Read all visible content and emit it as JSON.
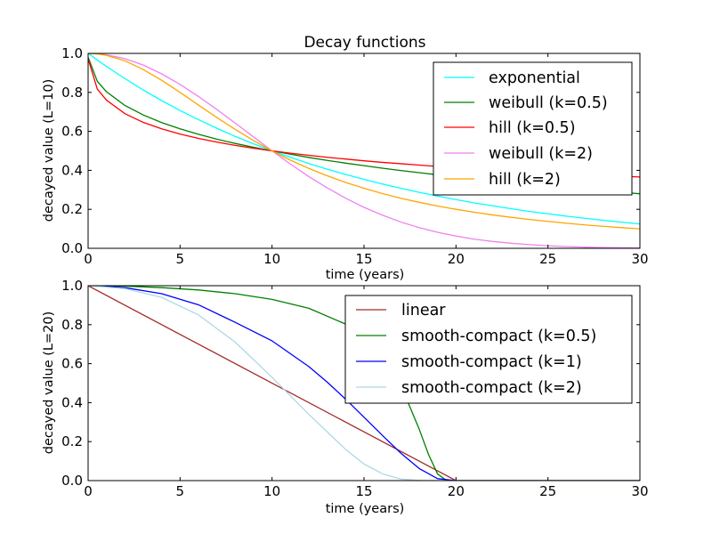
{
  "chart_data": [
    {
      "type": "line",
      "title": "Decay functions",
      "xlabel": "time (years)",
      "ylabel": "decayed value (L=10)",
      "xlim": [
        0,
        30
      ],
      "ylim": [
        0,
        1
      ],
      "xticks": [
        0,
        5,
        10,
        15,
        20,
        25,
        30
      ],
      "yticks": [
        0.0,
        0.2,
        0.4,
        0.6,
        0.8,
        1.0
      ],
      "tick_labels_x": [
        "0",
        "5",
        "10",
        "15",
        "20",
        "25",
        "30"
      ],
      "tick_labels_y": [
        "0.0",
        "0.2",
        "0.4",
        "0.6",
        "0.8",
        "1.0"
      ],
      "grid": false,
      "legend_position": "top-right",
      "x": [
        0.01,
        0.5,
        1,
        2,
        3,
        4,
        5,
        6,
        7,
        8,
        9,
        10,
        11,
        12,
        13,
        14,
        15,
        16,
        17,
        18,
        19,
        20,
        21,
        22,
        23,
        24,
        25,
        26,
        27,
        28,
        29,
        30
      ],
      "series": [
        {
          "name": "exponential",
          "color": "#00ffff",
          "values": [
            1.0,
            0.966,
            0.933,
            0.871,
            0.812,
            0.758,
            0.707,
            0.66,
            0.616,
            0.574,
            0.536,
            0.5,
            0.467,
            0.435,
            0.406,
            0.379,
            0.354,
            0.33,
            0.308,
            0.287,
            0.268,
            0.25,
            0.233,
            0.218,
            0.203,
            0.189,
            0.177,
            0.165,
            0.154,
            0.144,
            0.134,
            0.125
          ]
        },
        {
          "name": "weibull (k=0.5)",
          "color": "#008000",
          "values": [
            0.978,
            0.857,
            0.803,
            0.733,
            0.684,
            0.645,
            0.613,
            0.585,
            0.56,
            0.538,
            0.518,
            0.5,
            0.483,
            0.466,
            0.451,
            0.437,
            0.424,
            0.411,
            0.399,
            0.388,
            0.377,
            0.366,
            0.356,
            0.346,
            0.337,
            0.328,
            0.319,
            0.311,
            0.303,
            0.295,
            0.287,
            0.28
          ]
        },
        {
          "name": "hill (k=0.5)",
          "color": "#ff0000",
          "values": [
            0.969,
            0.817,
            0.76,
            0.691,
            0.646,
            0.613,
            0.586,
            0.564,
            0.545,
            0.528,
            0.513,
            0.5,
            0.488,
            0.477,
            0.467,
            0.458,
            0.449,
            0.441,
            0.434,
            0.427,
            0.42,
            0.414,
            0.408,
            0.403,
            0.397,
            0.392,
            0.387,
            0.383,
            0.378,
            0.374,
            0.37,
            0.366
          ]
        },
        {
          "name": "weibull (k=2)",
          "color": "#ee82ee",
          "values": [
            1.0,
            0.998,
            0.993,
            0.973,
            0.94,
            0.895,
            0.841,
            0.779,
            0.712,
            0.642,
            0.571,
            0.5,
            0.432,
            0.368,
            0.31,
            0.257,
            0.21,
            0.17,
            0.135,
            0.106,
            0.082,
            0.063,
            0.047,
            0.035,
            0.026,
            0.019,
            0.013,
            0.009,
            0.006,
            0.004,
            0.003,
            0.002
          ]
        },
        {
          "name": "hill (k=2)",
          "color": "#ffa500",
          "values": [
            1.0,
            0.998,
            0.99,
            0.962,
            0.917,
            0.862,
            0.8,
            0.735,
            0.671,
            0.61,
            0.552,
            0.5,
            0.452,
            0.41,
            0.372,
            0.338,
            0.308,
            0.281,
            0.257,
            0.236,
            0.217,
            0.2,
            0.185,
            0.171,
            0.159,
            0.148,
            0.138,
            0.129,
            0.12,
            0.113,
            0.106,
            0.1
          ]
        }
      ]
    },
    {
      "type": "line",
      "xlabel": "time (years)",
      "ylabel": "decayed value (L=20)",
      "xlim": [
        0,
        30
      ],
      "ylim": [
        0,
        1
      ],
      "xticks": [
        0,
        5,
        10,
        15,
        20,
        25,
        30
      ],
      "yticks": [
        0.0,
        0.2,
        0.4,
        0.6,
        0.8,
        1.0
      ],
      "tick_labels_x": [
        "0",
        "5",
        "10",
        "15",
        "20",
        "25",
        "30"
      ],
      "tick_labels_y": [
        "0.0",
        "0.2",
        "0.4",
        "0.6",
        "0.8",
        "1.0"
      ],
      "grid": false,
      "legend_position": "top-right",
      "series": [
        {
          "name": "linear",
          "color": "#a52a2a",
          "x": [
            0,
            20,
            30
          ],
          "values": [
            1.0,
            0.0,
            0.0
          ]
        },
        {
          "name": "smooth-compact (k=0.5)",
          "color": "#008000",
          "x": [
            0,
            2,
            4,
            6,
            8,
            10,
            12,
            14,
            15,
            16,
            17,
            18,
            18.5,
            19,
            19.5,
            20,
            30
          ],
          "values": [
            1.0,
            0.998,
            0.99,
            0.978,
            0.959,
            0.93,
            0.884,
            0.803,
            0.737,
            0.639,
            0.49,
            0.264,
            0.136,
            0.034,
            0.0,
            0.0,
            0.0
          ]
        },
        {
          "name": "smooth-compact (k=1)",
          "color": "#0000ff",
          "x": [
            0,
            2,
            4,
            6,
            8,
            10,
            12,
            13,
            14,
            15,
            16,
            17,
            18,
            19,
            20,
            30
          ],
          "values": [
            1.0,
            0.99,
            0.959,
            0.902,
            0.812,
            0.717,
            0.585,
            0.505,
            0.418,
            0.325,
            0.232,
            0.141,
            0.062,
            0.01,
            0.0,
            0.0
          ]
        },
        {
          "name": "smooth-compact (k=2)",
          "color": "#add8e6",
          "x": [
            0,
            2,
            4,
            6,
            8,
            10,
            12,
            13,
            14,
            15,
            16,
            17,
            18,
            18.5,
            19,
            20,
            30
          ],
          "values": [
            1.0,
            0.985,
            0.94,
            0.85,
            0.71,
            0.53,
            0.34,
            0.25,
            0.16,
            0.085,
            0.035,
            0.008,
            0.001,
            0.0,
            0.0,
            0.0,
            0.0
          ]
        }
      ]
    }
  ]
}
